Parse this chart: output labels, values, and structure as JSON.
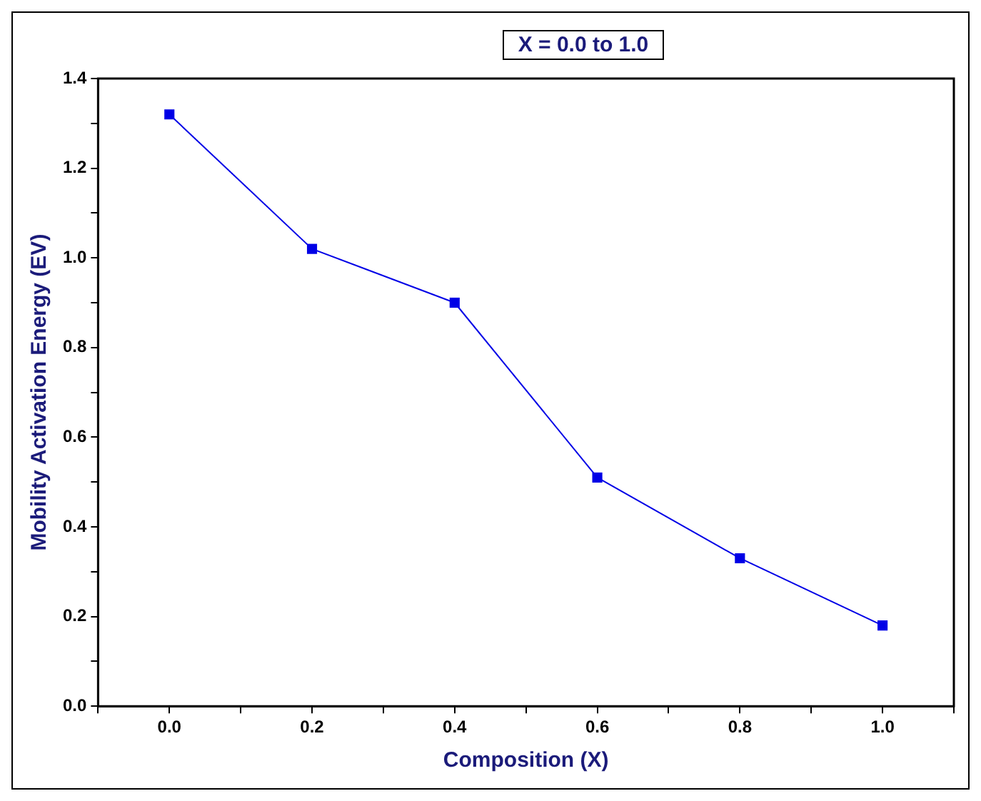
{
  "chart_data": {
    "type": "line",
    "title": "X = 0.0 to 1.0",
    "xlabel": "Composition (X)",
    "ylabel": "Mobility Activation Energy (EV)",
    "x": [
      0.0,
      0.2,
      0.4,
      0.6,
      0.8,
      1.0
    ],
    "series": [
      {
        "color": "#0000e6",
        "values": [
          1.32,
          1.02,
          0.9,
          0.51,
          0.33,
          0.18
        ]
      }
    ],
    "xlim": [
      -0.1,
      1.1
    ],
    "xticks": [
      {
        "value": -0.1,
        "label": null
      },
      {
        "value": 0,
        "label": "0.0"
      },
      {
        "value": 0.1,
        "label": null
      },
      0.2,
      {
        "value": 0.3,
        "label": null
      },
      0.4,
      {
        "value": 0.5,
        "label": null
      },
      0.6,
      {
        "value": 0.7,
        "label": null
      },
      0.8,
      {
        "value": 0.9,
        "label": null
      },
      {
        "value": 1,
        "label": "1.0"
      },
      {
        "value": 1.1,
        "label": null
      }
    ],
    "ylim": [
      0,
      1.4
    ],
    "yticks": [
      {
        "value": 0,
        "label": "0.0"
      },
      {
        "value": 0.1,
        "label": null
      },
      0.2,
      {
        "value": 0.3,
        "label": null
      },
      0.4,
      {
        "value": 0.5,
        "label": null
      },
      0.6,
      {
        "value": 0.7,
        "label": null
      },
      0.8,
      {
        "value": 0.9,
        "label": null
      },
      {
        "value": 1,
        "label": "1.0"
      },
      {
        "value": 1.1,
        "label": null
      },
      1.2,
      {
        "value": 1.3,
        "label": null
      },
      1.4
    ],
    "grid": false,
    "legend": false,
    "marker": "square",
    "line_style": "solid"
  }
}
